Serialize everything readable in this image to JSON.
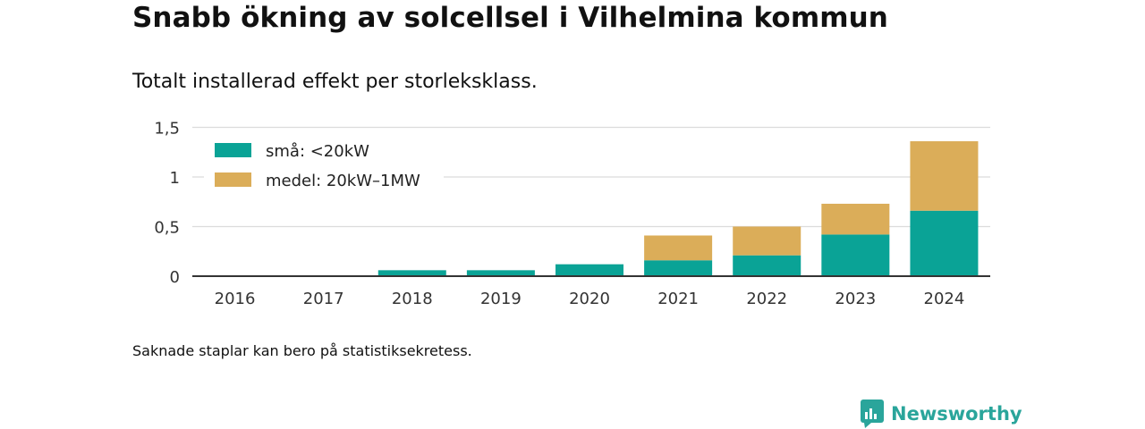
{
  "header": {
    "title": "Snabb ökning av solcellsel i Vilhelmina kommun",
    "subtitle": "Totalt installerad effekt per storleksklass."
  },
  "footer": {
    "note": "Saknade staplar kan bero på statistiksekretess.",
    "brand": "Newsworthy"
  },
  "colors": {
    "small": "#0aa396",
    "medium": "#dbad59",
    "brand": "#2aa59b"
  },
  "chart_data": {
    "type": "bar",
    "stacked": true,
    "categories": [
      "2016",
      "2017",
      "2018",
      "2019",
      "2020",
      "2021",
      "2022",
      "2023",
      "2024"
    ],
    "series": [
      {
        "name": "små: <20kW",
        "color": "#0aa396",
        "values": [
          0,
          0,
          0.06,
          0.06,
          0.12,
          0.16,
          0.21,
          0.42,
          0.66
        ]
      },
      {
        "name": "medel: 20kW–1MW",
        "color": "#dbad59",
        "values": [
          0,
          0,
          0,
          0,
          0,
          0.25,
          0.29,
          0.31,
          0.7
        ]
      }
    ],
    "yticks": [
      0,
      0.5,
      1,
      1.5
    ],
    "ytick_labels": [
      "0",
      "0,5",
      "1",
      "1,5"
    ],
    "ylim": [
      0,
      1.5
    ],
    "grid": true,
    "legend": "top-left"
  }
}
